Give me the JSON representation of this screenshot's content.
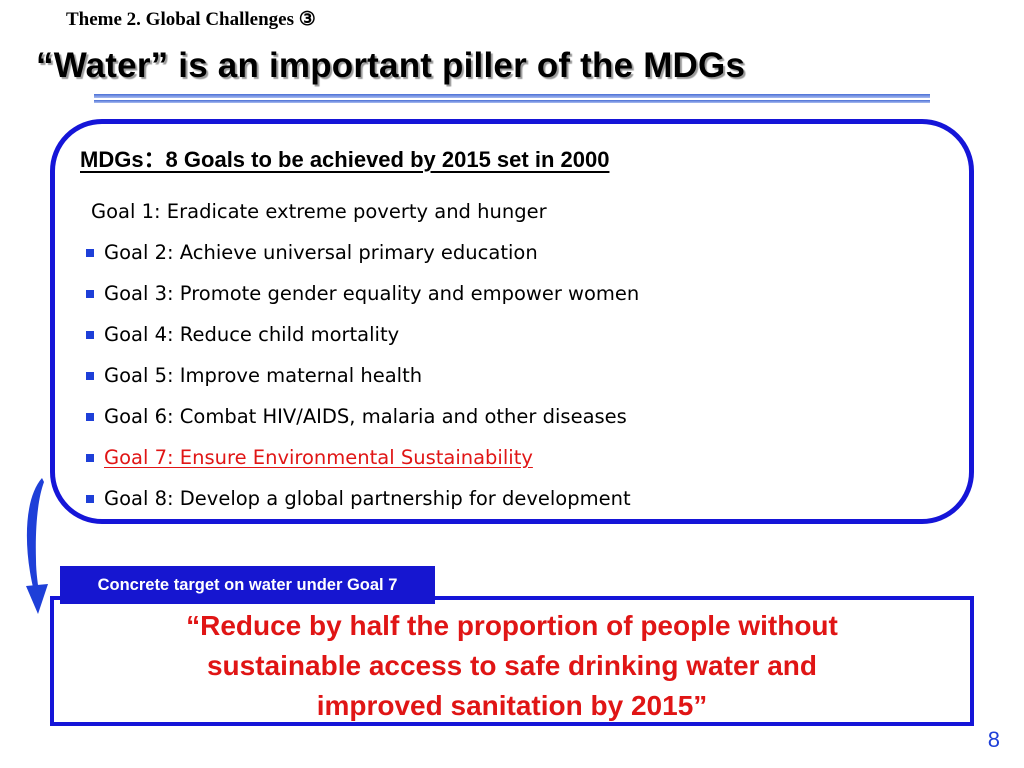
{
  "header": {
    "theme": "Theme 2.  Global Challenges  ③",
    "title": "“Water” is an important piller of the MDGs"
  },
  "goals_box": {
    "heading": "MDGs：8 Goals to be achieved by 2015 set in 2000",
    "goals": [
      {
        "text": "Goal 1: Eradicate extreme poverty and hunger",
        "bullet": false,
        "highlight": false
      },
      {
        "text": "Goal 2: Achieve universal primary education",
        "bullet": true,
        "highlight": false
      },
      {
        "text": "Goal 3: Promote gender equality and empower women",
        "bullet": true,
        "highlight": false
      },
      {
        "text": "Goal 4: Reduce child mortality",
        "bullet": true,
        "highlight": false
      },
      {
        "text": "Goal 5: Improve maternal health",
        "bullet": true,
        "highlight": false
      },
      {
        "text": "Goal 6: Combat HIV/AIDS, malaria and other diseases",
        "bullet": true,
        "highlight": false
      },
      {
        "text": "Goal 7: Ensure Environmental Sustainability",
        "bullet": true,
        "highlight": true
      },
      {
        "text": "Goal 8: Develop a global partnership for development",
        "bullet": true,
        "highlight": false
      }
    ]
  },
  "target": {
    "label": "Concrete target on water under Goal 7",
    "quote_lines": [
      "“Reduce by half the proportion of people without",
      "sustainable access to safe drinking water and",
      "improved sanitation by 2015”"
    ]
  },
  "page_number": "8",
  "colors": {
    "accent_blue": "#1515d8",
    "highlight_red": "#e01515"
  }
}
